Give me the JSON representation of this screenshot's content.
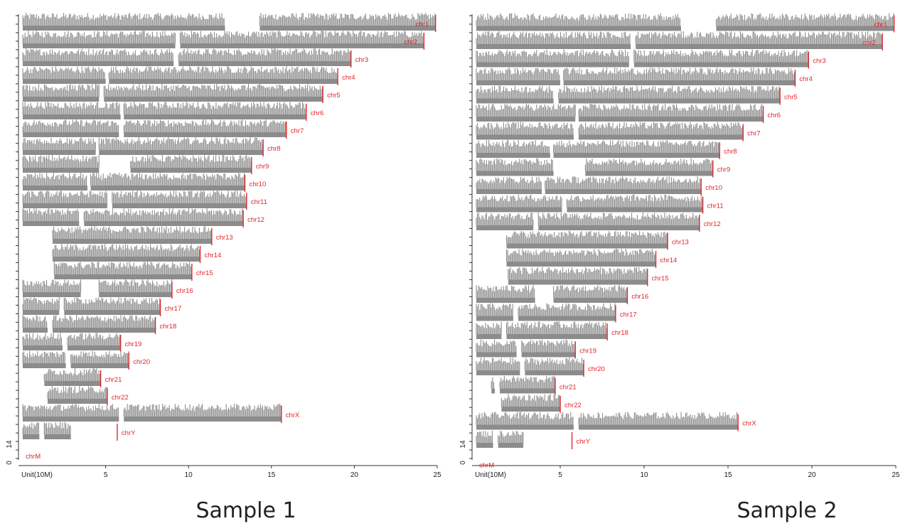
{
  "colors": {
    "coverage": "#8c8c8c",
    "marker": "#e0262b",
    "axis": "#333333"
  },
  "chart_data": [
    {
      "type": "bar",
      "title": "Sample 1",
      "xlabel": "Unit(10M)",
      "xlim": [
        0,
        25
      ],
      "xticks": [
        "5",
        "10",
        "15",
        "20",
        "25"
      ],
      "ylabel_ticks": [
        "0",
        "14"
      ],
      "chromosomes": [
        {
          "name": "chr1",
          "length": 24.9,
          "segments": [
            [
              0,
              12.2
            ],
            [
              14.3,
              24.9
            ]
          ]
        },
        {
          "name": "chr2",
          "length": 24.2,
          "segments": [
            [
              0,
              9.2
            ],
            [
              9.5,
              24.2
            ]
          ]
        },
        {
          "name": "chr3",
          "length": 19.8,
          "segments": [
            [
              0,
              9.1
            ],
            [
              9.4,
              19.8
            ]
          ]
        },
        {
          "name": "chr4",
          "length": 19.0,
          "segments": [
            [
              0,
              5.0
            ],
            [
              5.2,
              19.0
            ]
          ]
        },
        {
          "name": "chr5",
          "length": 18.1,
          "segments": [
            [
              0,
              4.6
            ],
            [
              4.9,
              18.1
            ]
          ]
        },
        {
          "name": "chr6",
          "length": 17.1,
          "segments": [
            [
              0,
              5.9
            ],
            [
              6.1,
              17.1
            ]
          ]
        },
        {
          "name": "chr7",
          "length": 15.9,
          "segments": [
            [
              0,
              5.8
            ],
            [
              6.1,
              15.9
            ]
          ]
        },
        {
          "name": "chr8",
          "length": 14.5,
          "segments": [
            [
              0,
              4.4
            ],
            [
              4.6,
              14.5
            ]
          ]
        },
        {
          "name": "chr9",
          "length": 13.8,
          "segments": [
            [
              0,
              4.6
            ],
            [
              6.5,
              13.8
            ]
          ]
        },
        {
          "name": "chr10",
          "length": 13.4,
          "segments": [
            [
              0,
              3.9
            ],
            [
              4.1,
              13.4
            ]
          ]
        },
        {
          "name": "chr11",
          "length": 13.5,
          "segments": [
            [
              0,
              5.1
            ],
            [
              5.4,
              13.5
            ]
          ]
        },
        {
          "name": "chr12",
          "length": 13.3,
          "segments": [
            [
              0,
              3.4
            ],
            [
              3.7,
              13.3
            ]
          ]
        },
        {
          "name": "chr13",
          "length": 11.4,
          "segments": [
            [
              1.8,
              11.4
            ]
          ]
        },
        {
          "name": "chr14",
          "length": 10.7,
          "segments": [
            [
              1.8,
              10.7
            ]
          ]
        },
        {
          "name": "chr15",
          "length": 10.2,
          "segments": [
            [
              1.9,
              10.2
            ]
          ]
        },
        {
          "name": "chr16",
          "length": 9.0,
          "segments": [
            [
              0,
              3.5
            ],
            [
              4.6,
              9.0
            ]
          ]
        },
        {
          "name": "chr17",
          "length": 8.3,
          "segments": [
            [
              0,
              2.2
            ],
            [
              2.5,
              8.3
            ]
          ]
        },
        {
          "name": "chr18",
          "length": 8.0,
          "segments": [
            [
              0,
              1.5
            ],
            [
              1.8,
              8.0
            ]
          ]
        },
        {
          "name": "chr19",
          "length": 5.9,
          "segments": [
            [
              0,
              2.4
            ],
            [
              2.7,
              5.9
            ]
          ]
        },
        {
          "name": "chr20",
          "length": 6.4,
          "segments": [
            [
              0,
              2.6
            ],
            [
              2.9,
              6.4
            ]
          ]
        },
        {
          "name": "chr21",
          "length": 4.7,
          "segments": [
            [
              1.3,
              4.7
            ]
          ]
        },
        {
          "name": "chr22",
          "length": 5.1,
          "segments": [
            [
              1.5,
              5.1
            ]
          ]
        },
        {
          "name": "chrX",
          "length": 15.6,
          "segments": [
            [
              0,
              5.8
            ],
            [
              6.1,
              15.6
            ]
          ]
        },
        {
          "name": "chrY",
          "length": 5.7,
          "segments": [
            [
              0,
              1.0
            ],
            [
              1.3,
              2.9
            ]
          ]
        },
        {
          "name": "chrM",
          "length": 0,
          "segments": []
        }
      ]
    },
    {
      "type": "bar",
      "title": "Sample 2",
      "xlabel": "Unit(10M)",
      "xlim": [
        0,
        25
      ],
      "xticks": [
        "5",
        "10",
        "15",
        "20",
        "25"
      ],
      "ylabel_ticks": [
        "0",
        "14"
      ],
      "chromosomes": [
        {
          "name": "chr1",
          "length": 24.9,
          "segments": [
            [
              0,
              12.2
            ],
            [
              14.3,
              24.9
            ]
          ]
        },
        {
          "name": "chr2",
          "length": 24.2,
          "segments": [
            [
              0,
              9.2
            ],
            [
              9.5,
              24.2
            ]
          ]
        },
        {
          "name": "chr3",
          "length": 19.8,
          "segments": [
            [
              0,
              9.1
            ],
            [
              9.4,
              19.8
            ]
          ]
        },
        {
          "name": "chr4",
          "length": 19.0,
          "segments": [
            [
              0,
              5.0
            ],
            [
              5.2,
              19.0
            ]
          ]
        },
        {
          "name": "chr5",
          "length": 18.1,
          "segments": [
            [
              0,
              4.6
            ],
            [
              4.9,
              18.1
            ]
          ]
        },
        {
          "name": "chr6",
          "length": 17.1,
          "segments": [
            [
              0,
              5.9
            ],
            [
              6.1,
              17.1
            ]
          ]
        },
        {
          "name": "chr7",
          "length": 15.9,
          "segments": [
            [
              0,
              5.8
            ],
            [
              6.1,
              15.9
            ]
          ]
        },
        {
          "name": "chr8",
          "length": 14.5,
          "segments": [
            [
              0,
              4.4
            ],
            [
              4.6,
              14.5
            ]
          ]
        },
        {
          "name": "chr9",
          "length": 14.1,
          "segments": [
            [
              0,
              4.6
            ],
            [
              6.5,
              14.1
            ]
          ]
        },
        {
          "name": "chr10",
          "length": 13.4,
          "segments": [
            [
              0,
              3.9
            ],
            [
              4.1,
              13.4
            ]
          ]
        },
        {
          "name": "chr11",
          "length": 13.5,
          "segments": [
            [
              0,
              5.1
            ],
            [
              5.4,
              13.5
            ]
          ]
        },
        {
          "name": "chr12",
          "length": 13.3,
          "segments": [
            [
              0,
              3.4
            ],
            [
              3.7,
              13.3
            ]
          ]
        },
        {
          "name": "chr13",
          "length": 11.4,
          "segments": [
            [
              1.8,
              11.4
            ]
          ]
        },
        {
          "name": "chr14",
          "length": 10.7,
          "segments": [
            [
              1.8,
              10.7
            ]
          ]
        },
        {
          "name": "chr15",
          "length": 10.2,
          "segments": [
            [
              1.9,
              10.2
            ]
          ]
        },
        {
          "name": "chr16",
          "length": 9.0,
          "segments": [
            [
              0,
              3.5
            ],
            [
              4.6,
              9.0
            ]
          ]
        },
        {
          "name": "chr17",
          "length": 8.3,
          "segments": [
            [
              0,
              2.2
            ],
            [
              2.5,
              8.3
            ]
          ]
        },
        {
          "name": "chr18",
          "length": 7.8,
          "segments": [
            [
              0,
              1.5
            ],
            [
              1.8,
              7.8
            ]
          ]
        },
        {
          "name": "chr19",
          "length": 5.9,
          "segments": [
            [
              0,
              2.4
            ],
            [
              2.7,
              5.9
            ]
          ]
        },
        {
          "name": "chr20",
          "length": 6.4,
          "segments": [
            [
              0,
              2.6
            ],
            [
              2.9,
              6.4
            ]
          ]
        },
        {
          "name": "chr21",
          "length": 4.7,
          "segments": [
            [
              0.9,
              1.1
            ],
            [
              1.4,
              4.7
            ]
          ]
        },
        {
          "name": "chr22",
          "length": 5.0,
          "segments": [
            [
              1.5,
              5.0
            ]
          ]
        },
        {
          "name": "chrX",
          "length": 15.6,
          "segments": [
            [
              0,
              5.8
            ],
            [
              6.1,
              15.6
            ]
          ]
        },
        {
          "name": "chrY",
          "length": 5.7,
          "segments": [
            [
              0,
              1.0
            ],
            [
              1.3,
              2.8
            ]
          ]
        },
        {
          "name": "chrM",
          "length": 0,
          "segments": []
        }
      ]
    }
  ]
}
